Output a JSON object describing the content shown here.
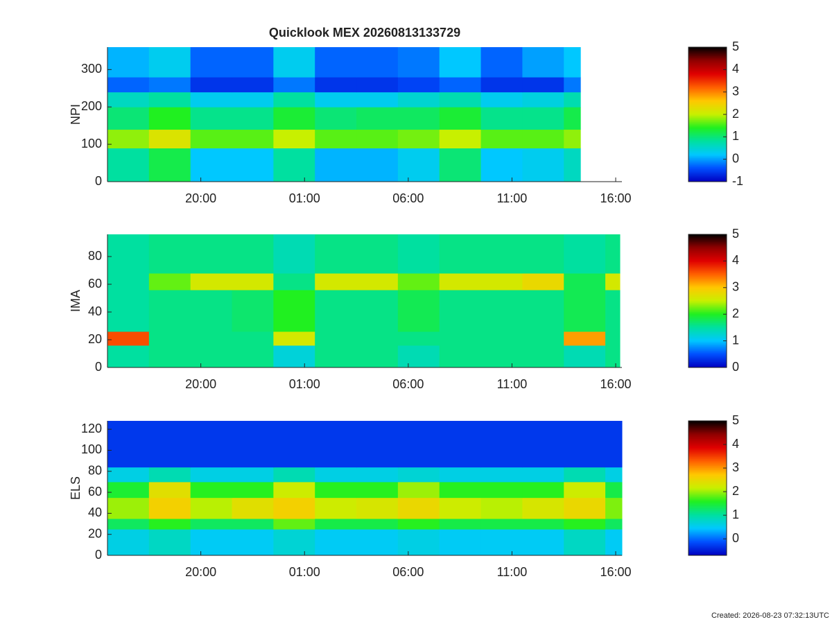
{
  "chart_data": [
    {
      "type": "heatmap",
      "title": "Quicklook MEX 20260813133729",
      "ylabel": "NPI",
      "xlim": [
        15.5,
        40.3
      ],
      "xticks": [
        {
          "value": 20,
          "label": "20:00"
        },
        {
          "value": 25,
          "label": "01:00"
        },
        {
          "value": 30,
          "label": "06:00"
        },
        {
          "value": 35,
          "label": "11:00"
        },
        {
          "value": 40,
          "label": "16:00"
        }
      ],
      "ylim": [
        0,
        360
      ],
      "yticks": [
        0,
        100,
        200,
        300
      ],
      "x_edges": [
        15.5,
        17.5,
        19.5,
        21.5,
        23.5,
        25.5,
        27.5,
        29.5,
        31.5,
        33.5,
        35.5,
        37.5,
        38.3
      ],
      "y_edges": [
        0,
        90,
        140,
        200,
        240,
        280,
        360
      ],
      "z": [
        [
          0.8,
          1.2,
          0.2,
          0.2,
          0.8,
          0.1,
          0.1,
          0.3,
          1.0,
          0.2,
          0.3,
          0.6
        ],
        [
          1.8,
          2.2,
          1.6,
          1.6,
          2.0,
          1.6,
          1.6,
          1.7,
          2.0,
          1.6,
          1.6,
          1.8
        ],
        [
          1.0,
          1.4,
          0.9,
          0.9,
          1.3,
          1.0,
          1.1,
          1.1,
          1.3,
          0.9,
          0.9,
          1.2
        ],
        [
          0.6,
          0.8,
          0.3,
          0.3,
          0.8,
          0.3,
          0.3,
          0.5,
          0.7,
          0.3,
          0.4,
          0.7
        ],
        [
          -0.3,
          -0.2,
          -0.6,
          -0.6,
          -0.2,
          -0.6,
          -0.6,
          -0.5,
          -0.3,
          -0.6,
          -0.6,
          -0.2
        ],
        [
          0.1,
          0.3,
          -0.3,
          -0.3,
          0.3,
          -0.3,
          -0.3,
          -0.2,
          0.2,
          -0.3,
          0.0,
          0.2
        ]
      ],
      "clim": [
        -1,
        5
      ],
      "cticks": [
        -1,
        0,
        1,
        2,
        3,
        4,
        5
      ]
    },
    {
      "type": "heatmap",
      "ylabel": "IMA",
      "xlim": [
        15.5,
        40.3
      ],
      "xticks": [
        {
          "value": 20,
          "label": "20:00"
        },
        {
          "value": 25,
          "label": "01:00"
        },
        {
          "value": 30,
          "label": "06:00"
        },
        {
          "value": 35,
          "label": "11:00"
        },
        {
          "value": 40,
          "label": "16:00"
        }
      ],
      "ylim": [
        0,
        96
      ],
      "yticks": [
        0,
        20,
        40,
        60,
        80
      ],
      "x_edges": [
        15.5,
        17.5,
        19.5,
        21.5,
        23.5,
        25.5,
        27.5,
        29.5,
        31.5,
        33.5,
        35.5,
        37.5,
        39.5,
        40.2
      ],
      "y_edges": [
        0,
        16,
        26,
        56,
        68,
        96
      ],
      "z": [
        [
          1.5,
          1.6,
          1.6,
          1.6,
          1.2,
          1.6,
          1.6,
          1.4,
          1.6,
          1.6,
          1.6,
          1.4,
          1.6
        ],
        [
          3.6,
          1.6,
          1.6,
          1.6,
          2.6,
          1.6,
          1.6,
          1.6,
          1.6,
          1.6,
          1.6,
          3.2,
          1.6
        ],
        [
          1.5,
          1.6,
          1.6,
          1.7,
          2.0,
          1.6,
          1.6,
          1.8,
          1.6,
          1.6,
          1.6,
          1.8,
          1.6
        ],
        [
          1.5,
          2.2,
          2.6,
          2.6,
          1.6,
          2.6,
          2.6,
          2.2,
          2.6,
          2.6,
          2.8,
          1.8,
          2.6
        ],
        [
          1.5,
          1.6,
          1.6,
          1.6,
          1.4,
          1.6,
          1.6,
          1.5,
          1.6,
          1.6,
          1.6,
          1.5,
          1.6
        ]
      ],
      "clim": [
        0,
        5
      ],
      "cticks": [
        0,
        1,
        2,
        3,
        4,
        5
      ]
    },
    {
      "type": "heatmap",
      "ylabel": "ELS",
      "xlim": [
        15.5,
        40.3
      ],
      "xticks": [
        {
          "value": 20,
          "label": "20:00"
        },
        {
          "value": 25,
          "label": "01:00"
        },
        {
          "value": 30,
          "label": "06:00"
        },
        {
          "value": 35,
          "label": "11:00"
        },
        {
          "value": 40,
          "label": "16:00"
        }
      ],
      "ylim": [
        0,
        128
      ],
      "yticks": [
        0,
        20,
        40,
        60,
        80,
        100,
        120
      ],
      "x_edges": [
        15.5,
        17.5,
        19.5,
        21.5,
        23.5,
        25.5,
        27.5,
        29.5,
        31.5,
        33.5,
        35.5,
        37.5,
        39.5,
        40.3
      ],
      "y_edges": [
        0,
        25,
        35,
        55,
        70,
        84,
        128
      ],
      "z": [
        [
          0.6,
          0.8,
          0.5,
          0.5,
          0.7,
          0.5,
          0.5,
          0.6,
          0.5,
          0.5,
          0.5,
          0.8,
          0.5
        ],
        [
          1.3,
          1.6,
          1.3,
          1.3,
          1.8,
          1.4,
          1.4,
          1.6,
          1.4,
          1.4,
          1.4,
          1.6,
          1.3
        ],
        [
          2.0,
          2.6,
          2.1,
          2.4,
          2.6,
          2.2,
          2.3,
          2.5,
          2.2,
          2.1,
          2.3,
          2.5,
          1.9
        ],
        [
          1.5,
          2.4,
          1.6,
          1.6,
          2.2,
          1.6,
          1.6,
          2.0,
          1.6,
          1.6,
          1.6,
          2.2,
          1.4
        ],
        [
          0.6,
          0.9,
          0.6,
          0.6,
          0.9,
          0.6,
          0.6,
          0.7,
          0.6,
          0.6,
          0.6,
          0.9,
          0.6
        ],
        [
          -0.3,
          -0.3,
          -0.3,
          -0.3,
          -0.3,
          -0.3,
          -0.3,
          -0.3,
          -0.3,
          -0.3,
          -0.3,
          -0.3,
          -0.3
        ]
      ],
      "clim": [
        -0.7,
        5
      ],
      "cticks": [
        0,
        1,
        2,
        3,
        4,
        5
      ]
    }
  ],
  "colormap": [
    "#0000c0",
    "#0050ff",
    "#00c8ff",
    "#00e0a0",
    "#20f020",
    "#c8f000",
    "#ffc800",
    "#ff6000",
    "#e00000",
    "#900000",
    "#000000"
  ],
  "footer": "Created: 2026-08-23 07:32:13UTC"
}
